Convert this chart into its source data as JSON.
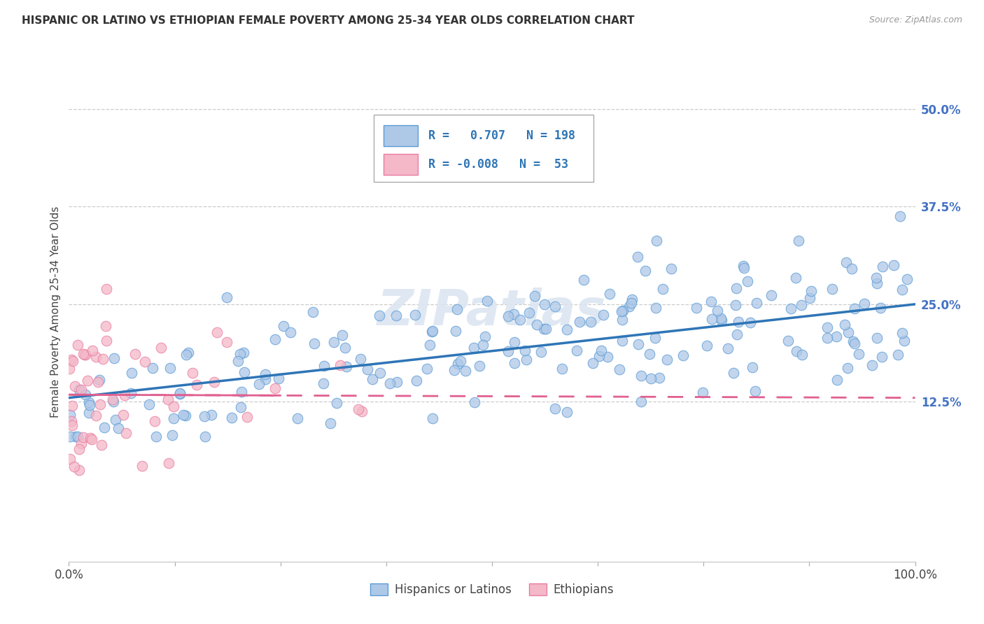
{
  "title": "HISPANIC OR LATINO VS ETHIOPIAN FEMALE POVERTY AMONG 25-34 YEAR OLDS CORRELATION CHART",
  "source": "Source: ZipAtlas.com",
  "ylabel": "Female Poverty Among 25-34 Year Olds",
  "xlim": [
    0.0,
    1.0
  ],
  "ylim": [
    -0.08,
    0.56
  ],
  "ytick_positions": [
    0.125,
    0.25,
    0.375,
    0.5
  ],
  "yticklabels": [
    "12.5%",
    "25.0%",
    "37.5%",
    "50.0%"
  ],
  "xtick_positions": [
    0.0,
    0.125,
    0.25,
    0.375,
    0.5,
    0.625,
    0.75,
    0.875,
    1.0
  ],
  "xticklabels": [
    "0.0%",
    "",
    "",
    "",
    "",
    "",
    "",
    "",
    "100.0%"
  ],
  "R_hispanic": 0.707,
  "N_hispanic": 198,
  "R_ethiopian": -0.008,
  "N_ethiopian": 53,
  "blue_fill": "#aec8e8",
  "blue_edge": "#5b9bd5",
  "blue_line": "#2e75b6",
  "pink_fill": "#f4b8c8",
  "pink_edge": "#e87ca0",
  "pink_line": "#e06090",
  "tick_color": "#4472c4",
  "grid_color": "#cccccc",
  "watermark": "ZIPatlas",
  "watermark_color": "#dce6f1",
  "legend_bottom_labels": [
    "Hispanics or Latinos",
    "Ethiopians"
  ]
}
